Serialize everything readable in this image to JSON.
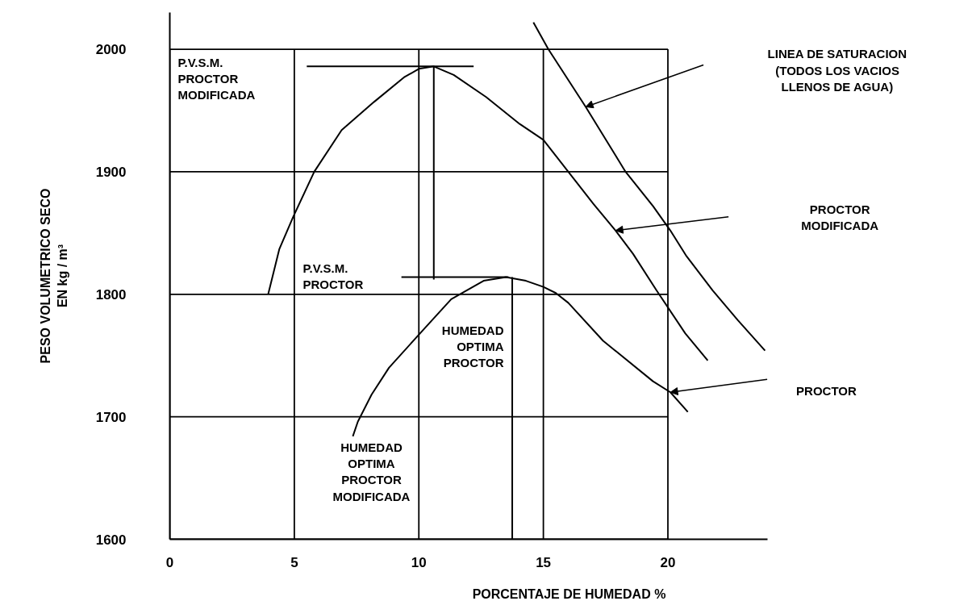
{
  "chart_data": {
    "type": "line",
    "xlabel": "PORCENTAJE DE HUMEDAD %",
    "ylabel": "PESO VOLUMETRICO SECO\nEN kg / m³",
    "xlim": [
      0,
      24
    ],
    "ylim": [
      1600,
      2030
    ],
    "xticks": [
      0,
      5,
      10,
      15,
      20
    ],
    "yticks": [
      1600,
      1700,
      1800,
      1900,
      2000
    ],
    "grid": true,
    "series": [
      {
        "name": "PROCTOR\nMODIFICADA",
        "color": "#000000",
        "x": [
          3.95,
          4.4,
          4.95,
          5.8,
          6.9,
          8.2,
          9.4,
          10.0,
          10.6,
          11.4,
          12.7,
          14.05,
          15.0,
          16.0,
          17.0,
          17.9,
          18.6,
          19.55,
          20.7,
          21.6
        ],
        "values": [
          1800,
          1837,
          1863,
          1900,
          1934,
          1957,
          1977,
          1984,
          1986,
          1979,
          1961,
          1939,
          1926,
          1900,
          1874,
          1852,
          1833,
          1803,
          1768,
          1746
        ]
      },
      {
        "name": "PROCTOR",
        "color": "#000000",
        "x": [
          7.35,
          7.55,
          8.1,
          8.8,
          10.0,
          11.3,
          12.6,
          13.5,
          14.3,
          15.0,
          15.5,
          16.0,
          17.4,
          19.4,
          20.1,
          20.8
        ],
        "values": [
          1684,
          1696,
          1718,
          1740,
          1767,
          1796,
          1811,
          1814,
          1811,
          1806,
          1801,
          1793,
          1762,
          1729,
          1720,
          1704
        ]
      },
      {
        "name": "LINEA DE SATURACION\n(TODOS LOS VACIOS\nLLENOS DE AGUA)",
        "color": "#000000",
        "x": [
          14.6,
          15.2,
          16.7,
          18.3,
          19.4,
          20.1,
          20.75,
          21.8,
          22.8,
          23.9
        ],
        "values": [
          2022,
          2000,
          1953,
          1900,
          1872,
          1852,
          1831,
          1803,
          1779,
          1754
        ]
      },
      {
        "color": "#000000",
        "x": [
          5.5,
          12.2
        ],
        "values": [
          1986,
          1986
        ]
      },
      {
        "color": "#000000",
        "x": [
          10.6,
          10.6
        ],
        "values": [
          1986,
          1812
        ]
      },
      {
        "color": "#000000",
        "x": [
          9.3,
          13.6
        ],
        "values": [
          1814,
          1814
        ]
      },
      {
        "color": "#000000",
        "x": [
          13.75,
          13.75
        ],
        "values": [
          1814,
          1600
        ]
      }
    ],
    "annotations": [
      "P.V.S.M.\nPROCTOR\nMODIFICADA",
      "P.V.S.M.\nPROCTOR",
      "HUMEDAD\nOPTIMA\nPROCTOR",
      "HUMEDAD\nOPTIMA\nPROCTOR\nMODIFICADA"
    ]
  }
}
